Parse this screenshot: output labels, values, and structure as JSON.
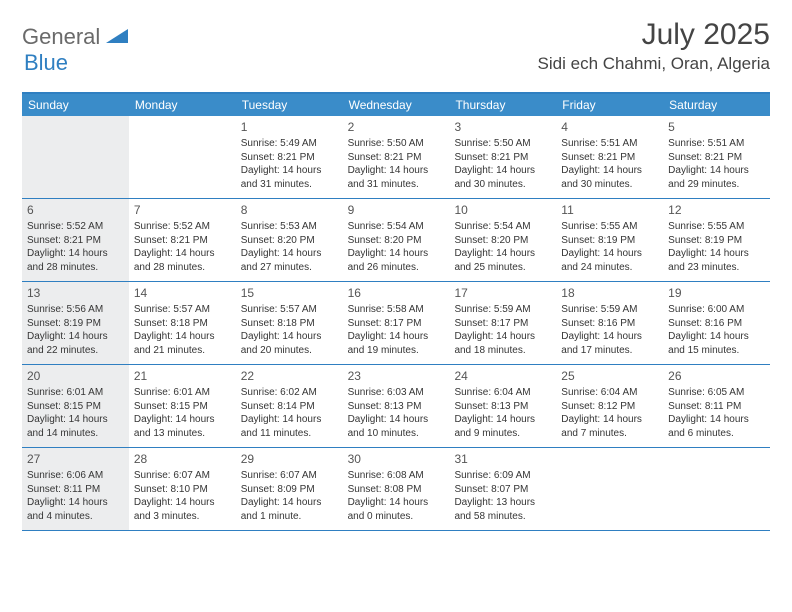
{
  "brand": {
    "name1": "General",
    "name2": "Blue"
  },
  "title": {
    "month": "July 2025",
    "location": "Sidi ech Chahmi, Oran, Algeria"
  },
  "colors": {
    "header_bar": "#3a8cc9",
    "border": "#2f7fc1",
    "sunday_bg": "#ecedee",
    "text": "#353535",
    "logo_gray": "#6a6a6a",
    "logo_blue": "#2f7fc1"
  },
  "weekdays": [
    "Sunday",
    "Monday",
    "Tuesday",
    "Wednesday",
    "Thursday",
    "Friday",
    "Saturday"
  ],
  "calendar": {
    "type": "table",
    "month": 7,
    "year": 2025,
    "first_weekday_index": 2,
    "weeks": [
      [
        null,
        null,
        {
          "n": "1",
          "sunrise": "5:49 AM",
          "sunset": "8:21 PM",
          "daylight": "14 hours and 31 minutes."
        },
        {
          "n": "2",
          "sunrise": "5:50 AM",
          "sunset": "8:21 PM",
          "daylight": "14 hours and 31 minutes."
        },
        {
          "n": "3",
          "sunrise": "5:50 AM",
          "sunset": "8:21 PM",
          "daylight": "14 hours and 30 minutes."
        },
        {
          "n": "4",
          "sunrise": "5:51 AM",
          "sunset": "8:21 PM",
          "daylight": "14 hours and 30 minutes."
        },
        {
          "n": "5",
          "sunrise": "5:51 AM",
          "sunset": "8:21 PM",
          "daylight": "14 hours and 29 minutes."
        }
      ],
      [
        {
          "n": "6",
          "sunrise": "5:52 AM",
          "sunset": "8:21 PM",
          "daylight": "14 hours and 28 minutes."
        },
        {
          "n": "7",
          "sunrise": "5:52 AM",
          "sunset": "8:21 PM",
          "daylight": "14 hours and 28 minutes."
        },
        {
          "n": "8",
          "sunrise": "5:53 AM",
          "sunset": "8:20 PM",
          "daylight": "14 hours and 27 minutes."
        },
        {
          "n": "9",
          "sunrise": "5:54 AM",
          "sunset": "8:20 PM",
          "daylight": "14 hours and 26 minutes."
        },
        {
          "n": "10",
          "sunrise": "5:54 AM",
          "sunset": "8:20 PM",
          "daylight": "14 hours and 25 minutes."
        },
        {
          "n": "11",
          "sunrise": "5:55 AM",
          "sunset": "8:19 PM",
          "daylight": "14 hours and 24 minutes."
        },
        {
          "n": "12",
          "sunrise": "5:55 AM",
          "sunset": "8:19 PM",
          "daylight": "14 hours and 23 minutes."
        }
      ],
      [
        {
          "n": "13",
          "sunrise": "5:56 AM",
          "sunset": "8:19 PM",
          "daylight": "14 hours and 22 minutes."
        },
        {
          "n": "14",
          "sunrise": "5:57 AM",
          "sunset": "8:18 PM",
          "daylight": "14 hours and 21 minutes."
        },
        {
          "n": "15",
          "sunrise": "5:57 AM",
          "sunset": "8:18 PM",
          "daylight": "14 hours and 20 minutes."
        },
        {
          "n": "16",
          "sunrise": "5:58 AM",
          "sunset": "8:17 PM",
          "daylight": "14 hours and 19 minutes."
        },
        {
          "n": "17",
          "sunrise": "5:59 AM",
          "sunset": "8:17 PM",
          "daylight": "14 hours and 18 minutes."
        },
        {
          "n": "18",
          "sunrise": "5:59 AM",
          "sunset": "8:16 PM",
          "daylight": "14 hours and 17 minutes."
        },
        {
          "n": "19",
          "sunrise": "6:00 AM",
          "sunset": "8:16 PM",
          "daylight": "14 hours and 15 minutes."
        }
      ],
      [
        {
          "n": "20",
          "sunrise": "6:01 AM",
          "sunset": "8:15 PM",
          "daylight": "14 hours and 14 minutes."
        },
        {
          "n": "21",
          "sunrise": "6:01 AM",
          "sunset": "8:15 PM",
          "daylight": "14 hours and 13 minutes."
        },
        {
          "n": "22",
          "sunrise": "6:02 AM",
          "sunset": "8:14 PM",
          "daylight": "14 hours and 11 minutes."
        },
        {
          "n": "23",
          "sunrise": "6:03 AM",
          "sunset": "8:13 PM",
          "daylight": "14 hours and 10 minutes."
        },
        {
          "n": "24",
          "sunrise": "6:04 AM",
          "sunset": "8:13 PM",
          "daylight": "14 hours and 9 minutes."
        },
        {
          "n": "25",
          "sunrise": "6:04 AM",
          "sunset": "8:12 PM",
          "daylight": "14 hours and 7 minutes."
        },
        {
          "n": "26",
          "sunrise": "6:05 AM",
          "sunset": "8:11 PM",
          "daylight": "14 hours and 6 minutes."
        }
      ],
      [
        {
          "n": "27",
          "sunrise": "6:06 AM",
          "sunset": "8:11 PM",
          "daylight": "14 hours and 4 minutes."
        },
        {
          "n": "28",
          "sunrise": "6:07 AM",
          "sunset": "8:10 PM",
          "daylight": "14 hours and 3 minutes."
        },
        {
          "n": "29",
          "sunrise": "6:07 AM",
          "sunset": "8:09 PM",
          "daylight": "14 hours and 1 minute."
        },
        {
          "n": "30",
          "sunrise": "6:08 AM",
          "sunset": "8:08 PM",
          "daylight": "14 hours and 0 minutes."
        },
        {
          "n": "31",
          "sunrise": "6:09 AM",
          "sunset": "8:07 PM",
          "daylight": "13 hours and 58 minutes."
        },
        null,
        null
      ]
    ]
  },
  "labels": {
    "sunrise_prefix": "Sunrise: ",
    "sunset_prefix": "Sunset: ",
    "daylight_prefix": "Daylight: "
  }
}
